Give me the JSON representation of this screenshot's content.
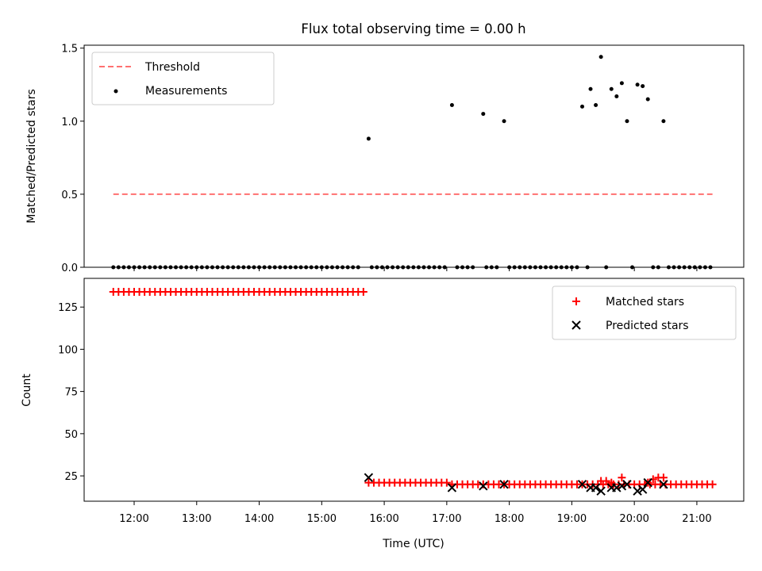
{
  "chart_data": [
    {
      "type": "scatter",
      "title": "Flux total observing time = 0.00 h",
      "xlabel": "",
      "ylabel": "Matched/Predicted stars",
      "ylim": [
        0,
        1.52
      ],
      "yticks": [
        "0.0",
        "0.5",
        "1.0",
        "1.5"
      ],
      "legend": {
        "position": "top-left",
        "entries": [
          "Threshold",
          "Measurements"
        ]
      },
      "threshold": {
        "name": "Threshold",
        "value": 0.5,
        "x_start": "11:40",
        "x_end": "21:15",
        "color": "#ff7070"
      },
      "series": [
        {
          "name": "Measurements",
          "color": "#000000",
          "points": [
            [
              "15:45",
              0.88
            ],
            [
              "17:05",
              1.11
            ],
            [
              "17:35",
              1.05
            ],
            [
              "17:55",
              1.0
            ],
            [
              "19:10",
              1.1
            ],
            [
              "19:18",
              1.22
            ],
            [
              "19:23",
              1.11
            ],
            [
              "19:28",
              1.44
            ],
            [
              "19:38",
              1.22
            ],
            [
              "19:43",
              1.17
            ],
            [
              "19:48",
              1.26
            ],
            [
              "19:53",
              1.0
            ],
            [
              "20:03",
              1.25
            ],
            [
              "20:08",
              1.24
            ],
            [
              "20:13",
              1.15
            ],
            [
              "20:28",
              1.0
            ],
            [
              "19:33",
              0.0
            ],
            [
              "19:58",
              0.0
            ]
          ]
        }
      ],
      "zero_runs": [
        [
          "11:40",
          "15:35",
          5
        ],
        [
          "15:48",
          "17:00",
          5
        ],
        [
          "17:10",
          "17:28",
          5
        ],
        [
          "17:38",
          "17:50",
          5
        ],
        [
          "18:00",
          "19:05",
          5
        ],
        [
          "19:15",
          "19:15",
          5
        ],
        [
          "20:18",
          "20:23",
          5
        ],
        [
          "20:33",
          "21:15",
          5
        ]
      ]
    },
    {
      "type": "scatter",
      "title": "",
      "xlabel": "Time (UTC)",
      "ylabel": "Count",
      "ylim": [
        10,
        142
      ],
      "yticks": [
        "25",
        "50",
        "75",
        "100",
        "125"
      ],
      "xticks": [
        "12:00",
        "13:00",
        "14:00",
        "15:00",
        "16:00",
        "17:00",
        "18:00",
        "19:00",
        "20:00",
        "21:00"
      ],
      "legend": {
        "position": "top-right",
        "entries": [
          "Matched stars",
          "Predicted stars"
        ]
      },
      "series": [
        {
          "name": "Matched stars",
          "color": "#ff0000",
          "runs": [
            [
              "11:40",
              "15:40",
              5,
              134
            ],
            [
              "15:45",
              "17:00",
              5,
              21
            ],
            [
              "17:05",
              "19:05",
              5,
              20
            ],
            [
              "19:10",
              "20:35",
              5,
              20
            ],
            [
              "20:40",
              "21:15",
              5,
              20
            ]
          ],
          "points": [
            [
              "19:28",
              22
            ],
            [
              "19:33",
              22
            ],
            [
              "19:38",
              21
            ],
            [
              "19:48",
              24
            ],
            [
              "20:13",
              21
            ],
            [
              "20:18",
              23
            ],
            [
              "20:23",
              24
            ],
            [
              "20:28",
              24
            ]
          ]
        },
        {
          "name": "Predicted stars",
          "color": "#000000",
          "points": [
            [
              "15:45",
              24
            ],
            [
              "17:05",
              18
            ],
            [
              "17:35",
              19
            ],
            [
              "17:55",
              20
            ],
            [
              "19:10",
              20
            ],
            [
              "19:18",
              18
            ],
            [
              "19:23",
              18
            ],
            [
              "19:28",
              16
            ],
            [
              "19:38",
              18
            ],
            [
              "19:43",
              18
            ],
            [
              "19:48",
              19
            ],
            [
              "19:53",
              20
            ],
            [
              "20:03",
              16
            ],
            [
              "20:08",
              17
            ],
            [
              "20:13",
              21
            ],
            [
              "20:28",
              20
            ]
          ]
        }
      ]
    }
  ]
}
